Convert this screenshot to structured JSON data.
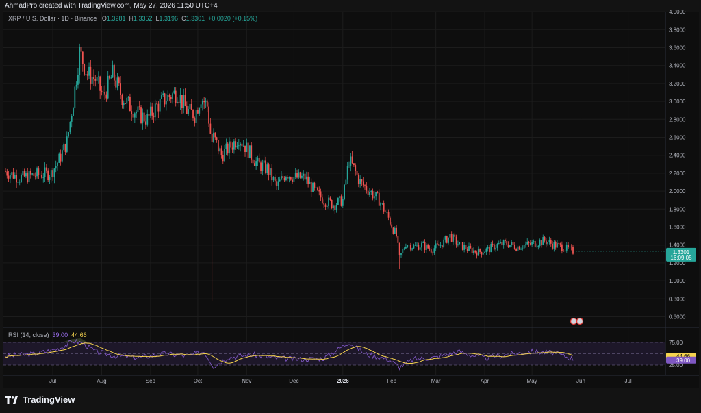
{
  "header": {
    "credit": "AhmadPro created with TradingView.com, May 27, 2026 11:50 UTC+4"
  },
  "legend": {
    "symbol": "XRP / U.S. Dollar · 1D · Binance",
    "o_label": "O",
    "o_value": "1.3281",
    "h_label": "H",
    "h_value": "1.3352",
    "l_label": "L",
    "l_value": "1.3196",
    "c_label": "C",
    "c_value": "1.3301",
    "change": "+0.0020 (+0.15%)"
  },
  "price_axis": {
    "ticks": [
      "4.0000",
      "3.8000",
      "3.6000",
      "3.4000",
      "3.2000",
      "3.0000",
      "2.8000",
      "2.6000",
      "2.4000",
      "2.2000",
      "2.0000",
      "1.8000",
      "1.6000",
      "1.4000",
      "1.2000",
      "1.0000",
      "0.8000",
      "0.6000"
    ],
    "last_price": "1.3301",
    "countdown": "16:09:05"
  },
  "rsi": {
    "label": "RSI (14, close)",
    "value": "39.00",
    "ma_value": "44.66",
    "axis_ticks": [
      "75.00",
      "25.00"
    ]
  },
  "time_axis": {
    "labels": [
      "Jul",
      "Aug",
      "Sep",
      "Oct",
      "Nov",
      "Dec",
      "2026",
      "Feb",
      "Mar",
      "Apr",
      "May",
      "Jun",
      "Jul"
    ]
  },
  "colors": {
    "up": "#26a69a",
    "down": "#ef5350",
    "rsi": "#7e57c2",
    "rsi_ma": "#f5d34e",
    "bg": "#0e0e0e"
  },
  "footer": {
    "brand": "TradingView"
  },
  "chart_data": {
    "type": "line",
    "title": "XRP / U.S. Dollar · 1D · Binance",
    "ylim": [
      0.6,
      4.0
    ],
    "grid": true,
    "series": [
      {
        "x": [
          "2025-06-01",
          "2025-06-10",
          "2025-06-20",
          "2025-06-30",
          "2025-07-05",
          "2025-07-10",
          "2025-07-14",
          "2025-07-18",
          "2025-07-23",
          "2025-07-28",
          "2025-08-02",
          "2025-08-08",
          "2025-08-14",
          "2025-08-19",
          "2025-08-25",
          "2025-08-30",
          "2025-09-05",
          "2025-09-12",
          "2025-09-18",
          "2025-09-24",
          "2025-09-29",
          "2025-10-03",
          "2025-10-07",
          "2025-10-10",
          "2025-10-11",
          "2025-10-16",
          "2025-10-22",
          "2025-10-27",
          "2025-11-02",
          "2025-11-08",
          "2025-11-14",
          "2025-11-20",
          "2025-11-26",
          "2025-12-02",
          "2025-12-08",
          "2025-12-14",
          "2025-12-20",
          "2025-12-26",
          "2026-01-01",
          "2026-01-05",
          "2026-01-08",
          "2026-01-12",
          "2026-01-18",
          "2026-01-24",
          "2026-01-30",
          "2026-02-04",
          "2026-02-06",
          "2026-02-10",
          "2026-02-15",
          "2026-02-20",
          "2026-02-26",
          "2026-03-04",
          "2026-03-10",
          "2026-03-16",
          "2026-03-22",
          "2026-03-28",
          "2026-04-03",
          "2026-04-09",
          "2026-04-15",
          "2026-04-21",
          "2026-04-27",
          "2026-05-03",
          "2026-05-09",
          "2026-05-15",
          "2026-05-20",
          "2026-05-24",
          "2026-05-27"
        ],
        "values": [
          2.22,
          2.15,
          2.18,
          2.2,
          2.35,
          2.55,
          3.0,
          3.55,
          3.3,
          3.25,
          3.05,
          3.3,
          3.05,
          2.95,
          2.85,
          2.8,
          2.95,
          3.05,
          3.1,
          2.9,
          2.85,
          3.05,
          2.95,
          2.5,
          2.6,
          2.4,
          2.5,
          2.6,
          2.45,
          2.3,
          2.25,
          2.05,
          2.2,
          2.15,
          2.15,
          2.0,
          1.9,
          1.85,
          1.9,
          2.35,
          2.25,
          2.1,
          2.0,
          1.9,
          1.7,
          1.5,
          1.25,
          1.42,
          1.38,
          1.4,
          1.35,
          1.4,
          1.5,
          1.4,
          1.35,
          1.32,
          1.35,
          1.4,
          1.42,
          1.38,
          1.4,
          1.42,
          1.45,
          1.4,
          1.38,
          1.35,
          1.33
        ]
      },
      {
        "name": "RSI (14, close)",
        "x": [
          "2025-06-01",
          "2025-06-20",
          "2025-07-05",
          "2025-07-14",
          "2025-07-20",
          "2025-07-28",
          "2025-08-10",
          "2025-08-25",
          "2025-09-10",
          "2025-09-25",
          "2025-10-05",
          "2025-10-11",
          "2025-10-20",
          "2025-11-05",
          "2025-11-20",
          "2025-12-05",
          "2025-12-20",
          "2026-01-05",
          "2026-01-15",
          "2026-01-30",
          "2026-02-06",
          "2026-02-15",
          "2026-03-01",
          "2026-03-15",
          "2026-04-01",
          "2026-04-15",
          "2026-05-01",
          "2026-05-15",
          "2026-05-27"
        ],
        "values": [
          45,
          50,
          62,
          78,
          74,
          55,
          45,
          42,
          50,
          45,
          55,
          22,
          42,
          48,
          40,
          38,
          40,
          76,
          50,
          38,
          20,
          38,
          42,
          55,
          40,
          48,
          55,
          52,
          39
        ]
      }
    ]
  }
}
